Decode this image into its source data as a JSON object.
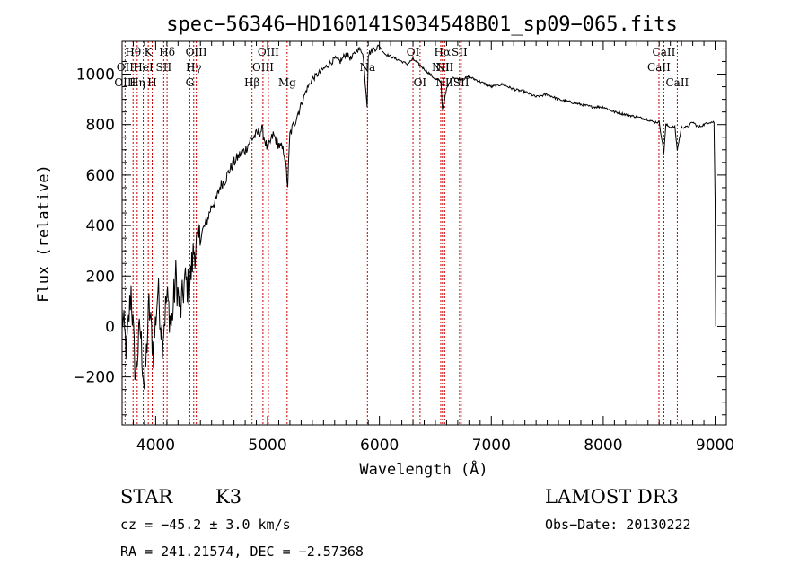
{
  "chart_data": {
    "type": "line",
    "title": "spec−56346−HD160141S034548B01_sp09−065.fits",
    "xlabel": "Wavelength (Å)",
    "ylabel": "Flux (relative)",
    "xlim": [
      3700,
      9100
    ],
    "ylim": [
      -390,
      1130
    ],
    "x_ticks": [
      4000,
      5000,
      6000,
      7000,
      8000,
      9000
    ],
    "x_tick_labels": [
      "4000",
      "5000",
      "6000",
      "7000",
      "8000",
      "9000"
    ],
    "y_ticks": [
      -200,
      0,
      200,
      400,
      600,
      800,
      1000
    ],
    "y_tick_labels": [
      "−200",
      "0",
      "200",
      "400",
      "600",
      "800",
      "1000"
    ],
    "series": [
      {
        "name": "spectrum",
        "x": [
          3700,
          3740,
          3780,
          3820,
          3860,
          3900,
          3940,
          3980,
          4020,
          4060,
          4100,
          4140,
          4180,
          4220,
          4260,
          4300,
          4340,
          4380,
          4420,
          4460,
          4500,
          4540,
          4580,
          4620,
          4660,
          4700,
          4750,
          4800,
          4850,
          4900,
          4950,
          5000,
          5050,
          5100,
          5150,
          5180,
          5200,
          5250,
          5300,
          5350,
          5400,
          5450,
          5500,
          5550,
          5600,
          5650,
          5700,
          5750,
          5800,
          5850,
          5890,
          5900,
          5950,
          6000,
          6050,
          6100,
          6150,
          6200,
          6250,
          6300,
          6350,
          6400,
          6450,
          6500,
          6550,
          6563,
          6600,
          6650,
          6700,
          6750,
          6800,
          6900,
          7000,
          7100,
          7200,
          7300,
          7400,
          7500,
          7600,
          7700,
          7800,
          7900,
          8000,
          8100,
          8200,
          8300,
          8400,
          8450,
          8500,
          8542,
          8560,
          8600,
          8640,
          8662,
          8700,
          8750,
          8800,
          8850,
          8900,
          8950,
          8990,
          9000,
          9005
        ],
        "y": [
          50,
          -100,
          150,
          -200,
          0,
          -250,
          80,
          -100,
          150,
          -50,
          120,
          0,
          200,
          50,
          180,
          150,
          300,
          330,
          380,
          420,
          480,
          500,
          560,
          580,
          620,
          650,
          680,
          700,
          740,
          760,
          780,
          700,
          760,
          720,
          690,
          560,
          760,
          820,
          880,
          940,
          980,
          1000,
          1020,
          1040,
          1060,
          1050,
          1080,
          1060,
          1100,
          1090,
          880,
          1080,
          1100,
          1110,
          1080,
          1070,
          1060,
          1050,
          1040,
          1060,
          1040,
          1020,
          1000,
          980,
          970,
          860,
          940,
          990,
          980,
          980,
          990,
          970,
          950,
          960,
          940,
          930,
          910,
          920,
          900,
          890,
          880,
          870,
          870,
          850,
          840,
          830,
          820,
          810,
          810,
          690,
          800,
          790,
          790,
          700,
          790,
          790,
          810,
          790,
          800,
          810,
          810,
          500,
          0
        ]
      }
    ],
    "lines": [
      {
        "label": "Hθ",
        "wavelength": 3798,
        "row": 0
      },
      {
        "label": "OII",
        "wavelength": 3727,
        "row": 1
      },
      {
        "label": "OIII",
        "wavelength": 3727,
        "row": 2
      },
      {
        "label": "Hη",
        "wavelength": 3835,
        "row": 2
      },
      {
        "label": "K",
        "wavelength": 3934,
        "row": 0
      },
      {
        "label": "HeI",
        "wavelength": 3889,
        "row": 1
      },
      {
        "label": "H",
        "wavelength": 3969,
        "row": 2
      },
      {
        "label": "Hδ",
        "wavelength": 4102,
        "row": 0
      },
      {
        "label": "SII",
        "wavelength": 4072,
        "row": 1
      },
      {
        "label": "OIII",
        "wavelength": 4363,
        "row": 0
      },
      {
        "label": "Hγ",
        "wavelength": 4340,
        "row": 1
      },
      {
        "label": "G",
        "wavelength": 4305,
        "row": 2
      },
      {
        "label": "Hβ",
        "wavelength": 4861,
        "row": 2
      },
      {
        "label": "OIII",
        "wavelength": 5007,
        "row": 0
      },
      {
        "label": "OIII",
        "wavelength": 4959,
        "row": 1
      },
      {
        "label": "Mg",
        "wavelength": 5175,
        "row": 2
      },
      {
        "label": "Na",
        "wavelength": 5893,
        "row": 1
      },
      {
        "label": "OI",
        "wavelength": 6300,
        "row": 0
      },
      {
        "label": "OI",
        "wavelength": 6363,
        "row": 2
      },
      {
        "label": "Hα",
        "wavelength": 6563,
        "row": 0
      },
      {
        "label": "SII",
        "wavelength": 6716,
        "row": 0
      },
      {
        "label": "NII",
        "wavelength": 6548,
        "row": 1
      },
      {
        "label": "NII",
        "wavelength": 6583,
        "row": 1
      },
      {
        "label": "NII",
        "wavelength": 6583,
        "row": 2
      },
      {
        "label": "SII",
        "wavelength": 6731,
        "row": 2
      },
      {
        "label": "CaII",
        "wavelength": 8542,
        "row": 0
      },
      {
        "label": "CaII",
        "wavelength": 8498,
        "row": 1
      },
      {
        "label": "CaII",
        "wavelength": 8662,
        "row": 2
      }
    ]
  },
  "info": {
    "class_label": "STAR",
    "subclass": "K3",
    "survey": "LAMOST DR3",
    "cz": "cz = −45.2 ± 3.0 km/s",
    "obs_date": "Obs−Date: 20130222",
    "coords": "RA = 241.21574, DEC =  −2.57368"
  },
  "colors": {
    "spectrum": "#000000",
    "line_marker": "#cc0000",
    "axes": "#000000"
  }
}
